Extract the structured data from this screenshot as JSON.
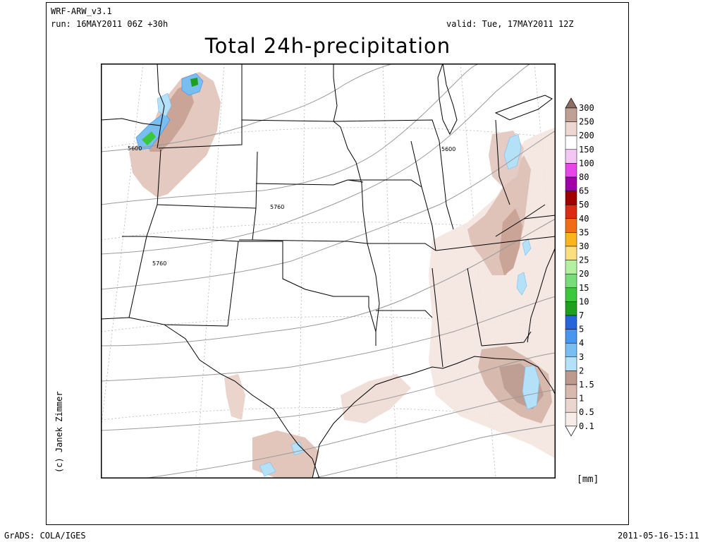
{
  "header": {
    "model": "WRF-ARW_v3.1",
    "run": "run: 16MAY2011 06Z +30h",
    "valid": "valid: Tue, 17MAY2011 12Z",
    "title": "Total 24h-precipitation"
  },
  "credit": "(c) Janek Zimmer",
  "footer": {
    "software": "GrADS: COLA/IGES",
    "timestamp": "2011-05-16-15:11"
  },
  "map": {
    "contour_labels": [
      "5600",
      "5760",
      "5760",
      "5600"
    ],
    "colors": {
      "state_lines": "#000000",
      "contours": "#9a9a9a",
      "grid": "#b0b0b0"
    }
  },
  "legend": {
    "units": "[mm]",
    "levels": [
      {
        "label": "300",
        "color": "#8c6c64"
      },
      {
        "label": "250",
        "color": "#bfa095"
      },
      {
        "label": "200",
        "color": "#ecd8d0"
      },
      {
        "label": "150",
        "color": "#ffffff"
      },
      {
        "label": "100",
        "color": "#f4c6f4"
      },
      {
        "label": "80",
        "color": "#e846e8"
      },
      {
        "label": "65",
        "color": "#a000a8"
      },
      {
        "label": "50",
        "color": "#a00000"
      },
      {
        "label": "40",
        "color": "#dc2a14"
      },
      {
        "label": "35",
        "color": "#f26c14"
      },
      {
        "label": "30",
        "color": "#fab41e"
      },
      {
        "label": "25",
        "color": "#fcde82"
      },
      {
        "label": "20",
        "color": "#b4f0a0"
      },
      {
        "label": "15",
        "color": "#78dc78"
      },
      {
        "label": "10",
        "color": "#3cc83c"
      },
      {
        "label": "7",
        "color": "#1ea01e"
      },
      {
        "label": "5",
        "color": "#2864dc"
      },
      {
        "label": "4",
        "color": "#4896f0"
      },
      {
        "label": "3",
        "color": "#78bef0"
      },
      {
        "label": "2",
        "color": "#b4e0f8"
      },
      {
        "label": "1.5",
        "color": "#bc9a8e"
      },
      {
        "label": "1",
        "color": "#d7b9ae"
      },
      {
        "label": "0.5",
        "color": "#ebd6cf"
      },
      {
        "label": "0.1",
        "color": "#f8ece8"
      }
    ]
  }
}
